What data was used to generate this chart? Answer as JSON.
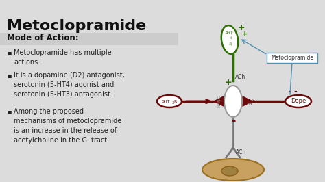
{
  "title": "Metoclopramide",
  "subtitle": "Mode of Action:",
  "bullets": [
    "Metoclopramide has multiple\nactions.",
    "It is a dopamine (D2) antagonist,\nserotonin (5-HT4) agonist and\nserotonin (5-HT3) antagonist.",
    "Among the proposed\nmechanisms of metoclopramide\nis an increase in the release of\nacetylcholine in the GI tract."
  ],
  "bg_color": "#dcdcdc",
  "title_color": "#111111",
  "subtitle_color": "#111111",
  "bullet_color": "#222222",
  "diagram_green": "#2d6e00",
  "diagram_dark_red": "#6b0a0a",
  "diagram_blue": "#5090b0",
  "diagram_tan_edge": "#a07828",
  "diagram_tan_fill": "#c8a060",
  "diagram_tan_inner": "#b09040"
}
